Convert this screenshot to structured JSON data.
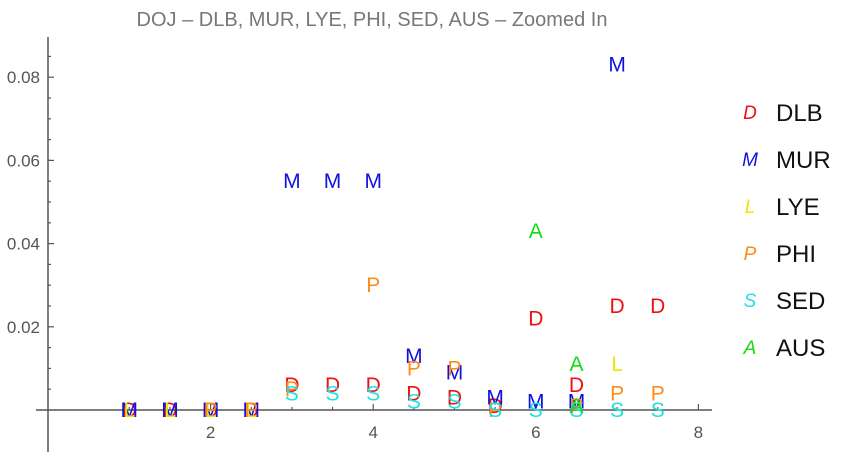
{
  "chart_data": {
    "type": "scatter",
    "title": "DOJ – DLB, MUR, LYE, PHI, SED, AUS – Zoomed In",
    "xlabel": "",
    "ylabel": "",
    "xlim": [
      0.5,
      8.1
    ],
    "ylim": [
      -0.011,
      0.089
    ],
    "x_ticks": [
      2,
      4,
      6,
      8
    ],
    "y_ticks": [
      0.02,
      0.04,
      0.06,
      0.08
    ],
    "x_tick_labels": [
      "2",
      "4",
      "6",
      "8"
    ],
    "y_tick_labels": [
      "0.02",
      "0.04",
      "0.06",
      "0.08"
    ],
    "grid": false,
    "legend": "right",
    "series": [
      {
        "name": "DLB",
        "marker": "D",
        "color": "#ee1111",
        "points": [
          [
            1,
            0
          ],
          [
            1.5,
            0
          ],
          [
            2,
            0
          ],
          [
            2.5,
            0
          ],
          [
            3,
            0.006
          ],
          [
            3.5,
            0.006
          ],
          [
            4,
            0.006
          ],
          [
            4.5,
            0.004
          ],
          [
            5,
            0.003
          ],
          [
            5.5,
            0.001
          ],
          [
            6,
            0.022
          ],
          [
            6.5,
            0.006
          ],
          [
            7,
            0.025
          ],
          [
            7.5,
            0.025
          ]
        ]
      },
      {
        "name": "MUR",
        "marker": "M",
        "color": "#1111dd",
        "points": [
          [
            1,
            0
          ],
          [
            1.5,
            0
          ],
          [
            2,
            0
          ],
          [
            2.5,
            0
          ],
          [
            3,
            0.055
          ],
          [
            3.5,
            0.055
          ],
          [
            4,
            0.055
          ],
          [
            4.5,
            0.013
          ],
          [
            5,
            0.009
          ],
          [
            5.5,
            0.003
          ],
          [
            6,
            0.002
          ],
          [
            6.5,
            0.002
          ],
          [
            7,
            0.083
          ]
        ]
      },
      {
        "name": "LYE",
        "marker": "L",
        "color": "#e8e800",
        "points": [
          [
            1,
            0
          ],
          [
            1.5,
            0
          ],
          [
            2,
            0
          ],
          [
            2.5,
            0
          ],
          [
            7,
            0.011
          ]
        ]
      },
      {
        "name": "PHI",
        "marker": "P",
        "color": "#ff8c1a",
        "points": [
          [
            2,
            0
          ],
          [
            2.5,
            0
          ],
          [
            3,
            0.005
          ],
          [
            4,
            0.03
          ],
          [
            4.5,
            0.01
          ],
          [
            5,
            0.01
          ],
          [
            5.5,
            0
          ],
          [
            6.5,
            0.001
          ],
          [
            7,
            0.004
          ],
          [
            7.5,
            0.004
          ]
        ]
      },
      {
        "name": "SED",
        "marker": "S",
        "color": "#22e0e0",
        "points": [
          [
            3,
            0.004
          ],
          [
            3.5,
            0.004
          ],
          [
            4,
            0.004
          ],
          [
            4.5,
            0.002
          ],
          [
            5,
            0.002
          ],
          [
            5.5,
            0
          ],
          [
            6,
            0
          ],
          [
            6.5,
            0
          ],
          [
            7,
            0
          ],
          [
            7.5,
            0
          ]
        ]
      },
      {
        "name": "AUS",
        "marker": "A",
        "color": "#11dd11",
        "points": [
          [
            6,
            0.043
          ],
          [
            6.5,
            0.011
          ],
          [
            6.5,
            0.001
          ]
        ]
      }
    ]
  }
}
